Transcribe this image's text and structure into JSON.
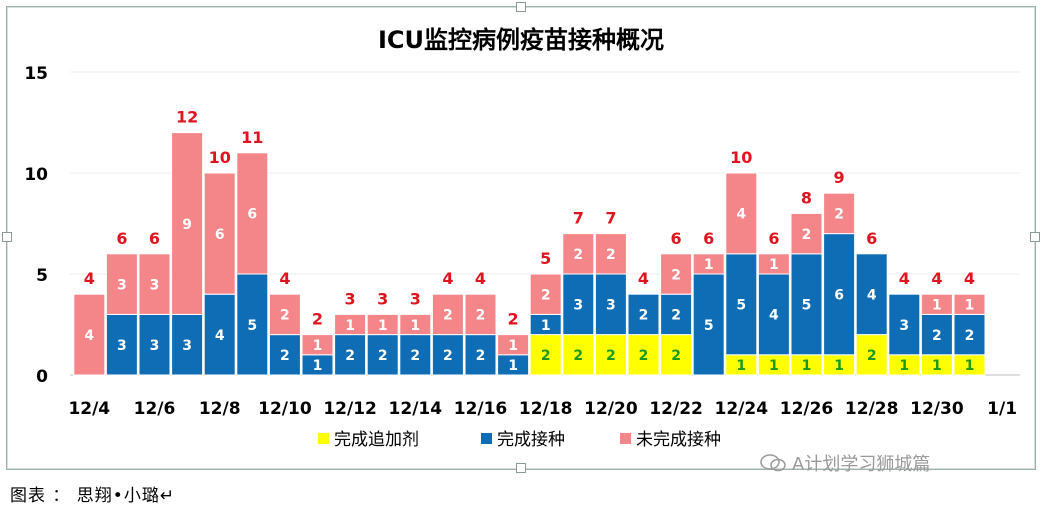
{
  "chart_data": {
    "type": "bar",
    "stacked": true,
    "title": "ICU监控病例疫苗接种概况",
    "categories": [
      "12/4",
      "12/5",
      "12/6",
      "12/7",
      "12/8",
      "12/9",
      "12/10",
      "12/11",
      "12/12",
      "12/13",
      "12/14",
      "12/15",
      "12/16",
      "12/17",
      "12/18",
      "12/19",
      "12/20",
      "12/21",
      "12/22",
      "12/23",
      "12/24",
      "12/25",
      "12/26",
      "12/27",
      "12/28",
      "12/29",
      "12/30",
      "12/31"
    ],
    "x_tick_labels": [
      "12/4",
      "12/6",
      "12/8",
      "12/10",
      "12/12",
      "12/14",
      "12/16",
      "12/18",
      "12/20",
      "12/22",
      "12/24",
      "12/26",
      "12/28",
      "12/30",
      "1/1"
    ],
    "ylim": [
      0,
      15
    ],
    "yticks": [
      0,
      5,
      10,
      15
    ],
    "grid": true,
    "legend_position": "bottom",
    "series": [
      {
        "name": "完成追加剂",
        "color": "#ffff00",
        "label_color": "#1a9a1a",
        "values": [
          0,
          0,
          0,
          0,
          0,
          0,
          0,
          0,
          0,
          0,
          0,
          0,
          0,
          0,
          2,
          2,
          2,
          2,
          2,
          0,
          1,
          1,
          1,
          1,
          2,
          1,
          1,
          1
        ]
      },
      {
        "name": "完成接种",
        "color": "#0e6db5",
        "label_color": "#ffffff",
        "values": [
          0,
          3,
          3,
          3,
          4,
          5,
          2,
          1,
          2,
          2,
          2,
          2,
          2,
          1,
          1,
          3,
          3,
          2,
          2,
          5,
          5,
          4,
          5,
          6,
          4,
          3,
          2,
          2
        ]
      },
      {
        "name": "未完成接种",
        "color": "#f4868a",
        "label_color": "#ffffff",
        "values": [
          4,
          3,
          3,
          9,
          6,
          6,
          2,
          1,
          1,
          1,
          1,
          2,
          2,
          1,
          2,
          2,
          2,
          0,
          2,
          1,
          4,
          1,
          2,
          2,
          0,
          0,
          1,
          1
        ]
      }
    ],
    "totals": [
      4,
      6,
      6,
      12,
      10,
      11,
      4,
      2,
      3,
      3,
      3,
      4,
      4,
      2,
      5,
      7,
      7,
      4,
      6,
      6,
      10,
      6,
      8,
      9,
      6,
      4,
      4,
      4
    ],
    "totals_color": "#e0141e"
  },
  "caption": "图表 ： 思翔•小璐↵",
  "watermark": "A计划学习狮城篇"
}
